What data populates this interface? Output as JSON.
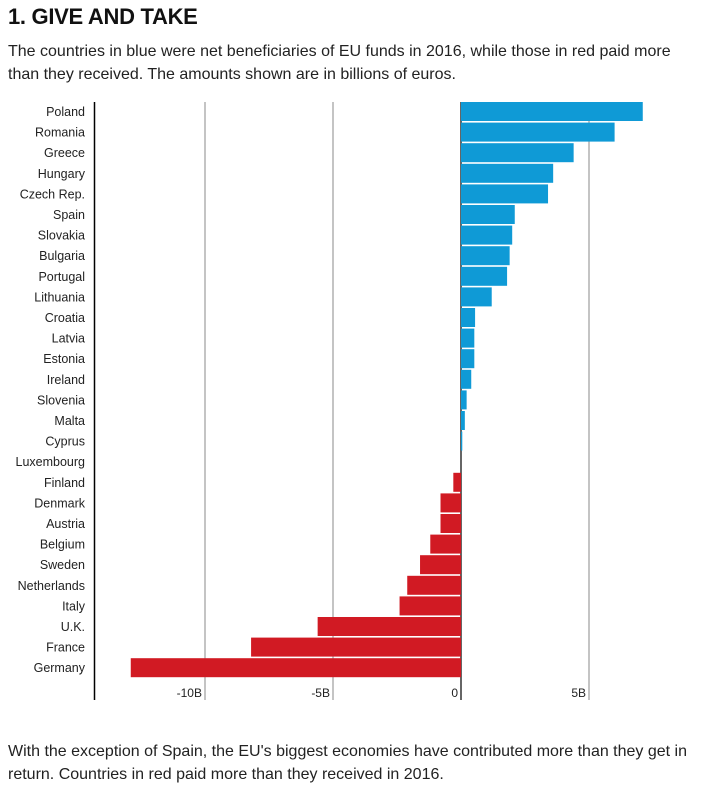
{
  "header": {
    "title": "1. GIVE AND TAKE",
    "subtitle": "The countries in blue were net beneficiaries of EU funds in 2016, while those in red paid more than they received. The amounts shown are in billions of euros."
  },
  "footnote": "With the exception of Spain, the EU's biggest economies have contributed more than they get in return. Countries in red paid more than they received in 2016.",
  "colors": {
    "positive": "#0f9ad6",
    "negative": "#d11a23",
    "axis": "#000000",
    "grid": "#8a8a8a"
  },
  "chart_data": {
    "type": "bar",
    "orientation": "horizontal",
    "categories": [
      "Poland",
      "Romania",
      "Greece",
      "Hungary",
      "Czech Rep.",
      "Spain",
      "Slovakia",
      "Bulgaria",
      "Portugal",
      "Lithuania",
      "Croatia",
      "Latvia",
      "Estonia",
      "Ireland",
      "Slovenia",
      "Malta",
      "Cyprus",
      "Luxembourg",
      "Finland",
      "Denmark",
      "Austria",
      "Belgium",
      "Sweden",
      "Netherlands",
      "Italy",
      "U.K.",
      "France",
      "Germany"
    ],
    "values": [
      7.1,
      6.0,
      4.4,
      3.6,
      3.4,
      2.1,
      2.0,
      1.9,
      1.8,
      1.2,
      0.55,
      0.52,
      0.52,
      0.4,
      0.22,
      0.15,
      0.05,
      0.0,
      -0.3,
      -0.8,
      -0.8,
      -1.2,
      -1.6,
      -2.1,
      -2.4,
      -5.6,
      -8.2,
      -12.9
    ],
    "xlim": [
      -14.5,
      8.5
    ],
    "xticks": [
      -10,
      -5,
      0,
      5
    ],
    "xtick_labels": [
      "-10B",
      "-5B",
      "0",
      "5B"
    ],
    "grid": true,
    "xlabel": "",
    "ylabel": ""
  }
}
